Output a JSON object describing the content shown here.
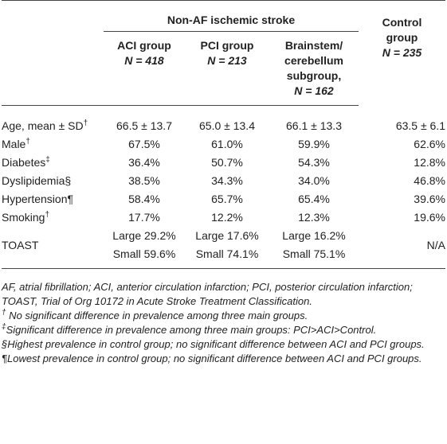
{
  "table": {
    "group_header": "Non-AF ischemic stroke",
    "columns": [
      {
        "lines": [
          "ACI group"
        ],
        "n": "N = 418"
      },
      {
        "lines": [
          "PCI group"
        ],
        "n": "N = 213"
      },
      {
        "lines": [
          "Brainstem/",
          "cerebellum",
          "subgroup,"
        ],
        "n": "N = 162"
      },
      {
        "lines": [
          "Control",
          "group"
        ],
        "n": "N = 235"
      }
    ],
    "rows": [
      {
        "label": "Age, mean ± SD",
        "mark": "†",
        "cells": [
          [
            "66.5 ± 13.7"
          ],
          [
            "65.0 ± 13.4"
          ],
          [
            "66.1 ± 13.3"
          ],
          [
            "63.5 ± 6.1"
          ]
        ]
      },
      {
        "label": "Male",
        "mark": "†",
        "cells": [
          [
            "67.5%"
          ],
          [
            "61.0%"
          ],
          [
            "59.9%"
          ],
          [
            "62.6%"
          ]
        ]
      },
      {
        "label": "Diabetes",
        "mark": "‡",
        "cells": [
          [
            "36.4%"
          ],
          [
            "50.7%"
          ],
          [
            "54.3%"
          ],
          [
            "12.8%"
          ]
        ]
      },
      {
        "label": "Dyslipidemia§",
        "cells": [
          [
            "38.5%"
          ],
          [
            "34.3%"
          ],
          [
            "34.0%"
          ],
          [
            "46.8%"
          ]
        ]
      },
      {
        "label": "Hypertension¶",
        "cells": [
          [
            "58.4%"
          ],
          [
            "65.7%"
          ],
          [
            "65.4%"
          ],
          [
            "39.6%"
          ]
        ]
      },
      {
        "label": "Smoking",
        "mark": "†",
        "cells": [
          [
            "17.7%"
          ],
          [
            "12.2%"
          ],
          [
            "12.3%"
          ],
          [
            "19.6%"
          ]
        ]
      },
      {
        "label": "TOAST",
        "cells": [
          [
            "Large 29.2%",
            "Small 59.6%"
          ],
          [
            "Large 17.6%",
            "Small 74.1%"
          ],
          [
            "Large 16.2%",
            "Small 75.1%"
          ],
          [
            "N/A"
          ]
        ]
      }
    ],
    "footnotes": [
      {
        "text": "AF, atrial fibrillation; ACI, anterior circulation infarction; PCI, posterior circulation infarction; TOAST, Trial of Org 10172 in Acute Stroke Treatment Classification."
      },
      {
        "mark": "†",
        "text": " No significant difference in prevalence among three main groups."
      },
      {
        "mark": "‡",
        "text": "Significant difference in prevalence among three main groups: PCI>ACI>Control."
      },
      {
        "text": "§Highest prevalence in control group; no significant difference between ACI and PCI groups."
      },
      {
        "text": "¶Lowest prevalence in control group; no significant difference between ACI and PCI groups."
      }
    ]
  }
}
